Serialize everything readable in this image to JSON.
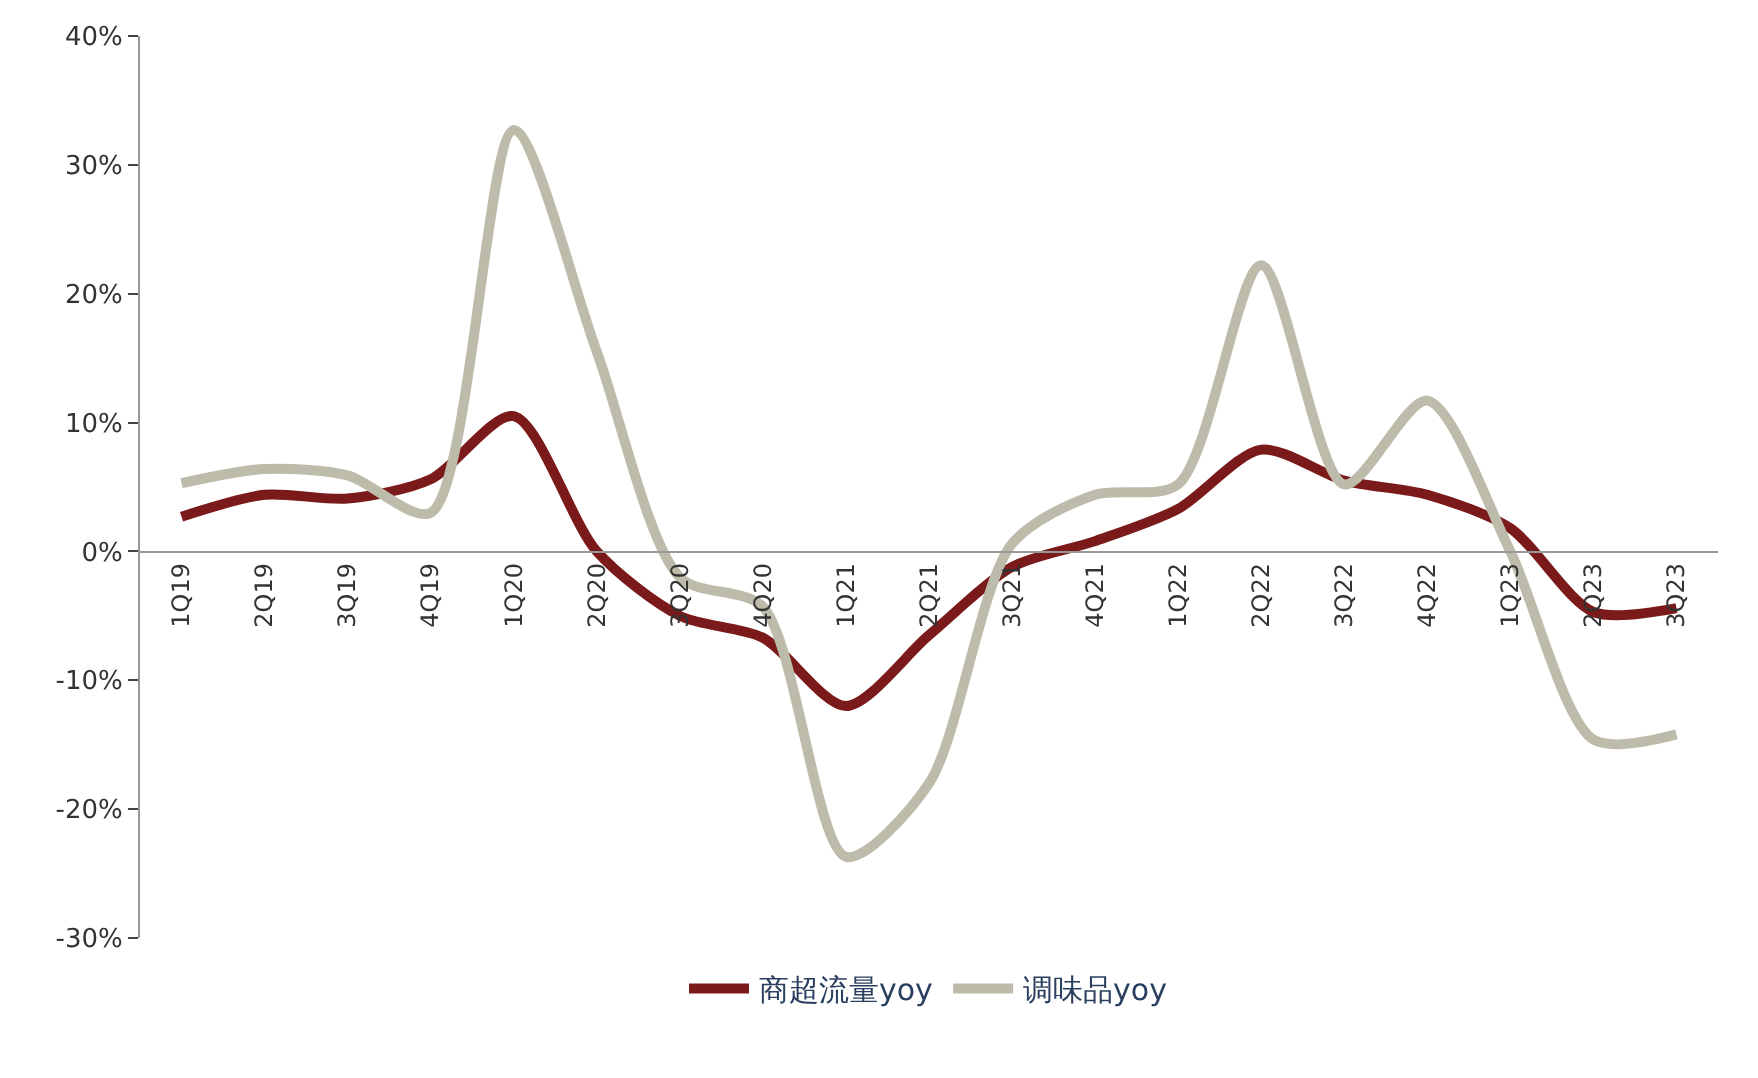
{
  "chart_data": {
    "type": "line",
    "categories": [
      "1Q19",
      "2Q19",
      "3Q19",
      "4Q19",
      "1Q20",
      "2Q20",
      "3Q20",
      "4Q20",
      "1Q21",
      "2Q21",
      "3Q21",
      "4Q21",
      "1Q22",
      "2Q22",
      "3Q22",
      "4Q22",
      "1Q23",
      "2Q23",
      "3Q23"
    ],
    "series": [
      {
        "name": "商超流量yoy",
        "color": "#7b1a1a",
        "values": [
          2.7,
          4.4,
          4.1,
          5.6,
          10.5,
          0,
          -5,
          -6.7,
          -12,
          -6.5,
          -1.2,
          0.8,
          3.3,
          7.9,
          5.5,
          4.4,
          1.8,
          -4.7,
          -4.4
        ]
      },
      {
        "name": "调味品yoy",
        "color": "#bdbba9",
        "values": [
          5.3,
          6.4,
          5.9,
          3,
          32.7,
          15.5,
          -2,
          -4.3,
          -23.7,
          -18,
          0.6,
          4.4,
          5.2,
          22.2,
          5.2,
          11.7,
          0,
          -14.6,
          -14.2
        ]
      }
    ],
    "ylim": [
      -30,
      40
    ],
    "yticks": [
      {
        "value": -30,
        "label": "-30%"
      },
      {
        "value": -20,
        "label": "-20%"
      },
      {
        "value": -10,
        "label": "-10%"
      },
      {
        "value": 0,
        "label": "0%"
      },
      {
        "value": 10,
        "label": "10%"
      },
      {
        "value": 20,
        "label": "20%"
      },
      {
        "value": 30,
        "label": "30%"
      },
      {
        "value": 40,
        "label": "40%"
      }
    ],
    "grid": false,
    "legend": "bottom",
    "marker": "none",
    "line_style": "solid"
  }
}
